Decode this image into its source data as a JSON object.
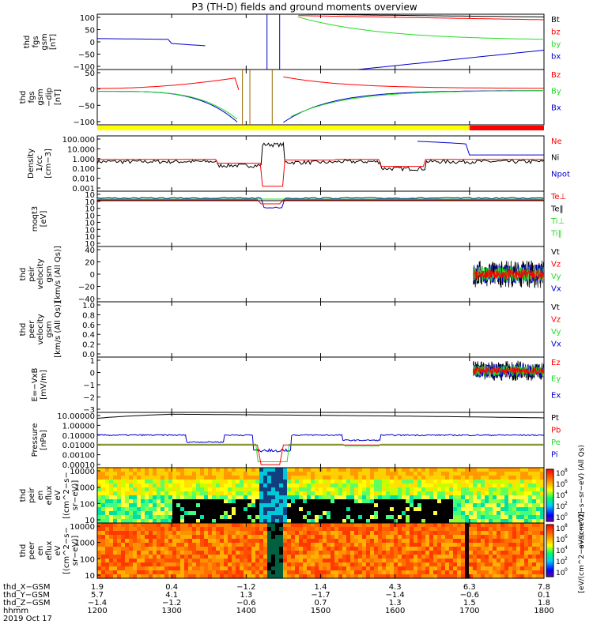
{
  "title": "P3 (TH-D) fields and ground moments overview",
  "colors": {
    "black": "#000000",
    "red": "#ff0000",
    "green": "#22dd22",
    "blue": "#0000cc",
    "yellow": "#ffff00"
  },
  "chart_data": [
    {
      "type": "line",
      "panel": "fgs_gsm_nT",
      "ylabel": [
        "thd",
        "fgs",
        "gsm",
        "[nT]"
      ],
      "ylim": [
        -100,
        100
      ],
      "ticks": [
        "100",
        "50",
        "0",
        "−50",
        "−100"
      ],
      "series": [
        {
          "name": "Bt",
          "color": "black"
        },
        {
          "name": "bz",
          "color": "red"
        },
        {
          "name": "by",
          "color": "green"
        },
        {
          "name": "bx",
          "color": "blue"
        }
      ]
    },
    {
      "type": "line",
      "panel": "fgs_gsm_dip",
      "ylabel": [
        "thd",
        "fgs",
        "gsm",
        "−dip",
        "[nT]"
      ],
      "ylim": [
        -120,
        70
      ],
      "ticks": [
        "50",
        "0",
        "−50",
        "−100"
      ],
      "series": [
        {
          "name": "Bz",
          "color": "red"
        },
        {
          "name": "By",
          "color": "green"
        },
        {
          "name": "Bx",
          "color": "blue"
        }
      ]
    },
    {
      "type": "line",
      "panel": "density",
      "ylabel": [
        "Density",
        "1/cc",
        "[cm−3]"
      ],
      "scale": "log",
      "ticks": [
        "100.000",
        "10.000",
        "1.000",
        "0.100",
        "0.010",
        "0.001"
      ],
      "series": [
        {
          "name": "Ne",
          "color": "red"
        },
        {
          "name": "Ni",
          "color": "black"
        },
        {
          "name": "Npot",
          "color": "blue"
        }
      ]
    },
    {
      "type": "line",
      "panel": "temperature",
      "ylabel": [
        "moqt3",
        "[eV]"
      ],
      "scale": "log",
      "ticks": [
        "10",
        "10",
        "10",
        "10",
        "10",
        "10",
        "10",
        "10"
      ],
      "series": [
        {
          "name": "Te⊥",
          "color": "red"
        },
        {
          "name": "Te‖",
          "color": "black"
        },
        {
          "name": "Ti⊥",
          "color": "green"
        },
        {
          "name": "Ti‖",
          "color": "green"
        }
      ]
    },
    {
      "type": "line",
      "panel": "peir_velocity",
      "ylabel": [
        "thd",
        "peir",
        "velocity",
        "gsm",
        "[km/s (All Qs)]"
      ],
      "ylim": [
        -40,
        40
      ],
      "ticks": [
        "40",
        "20",
        "0",
        "−20",
        "−40"
      ],
      "series": [
        {
          "name": "Vt",
          "color": "black"
        },
        {
          "name": "Vz",
          "color": "red"
        },
        {
          "name": "Vy",
          "color": "green"
        },
        {
          "name": "Vx",
          "color": "blue"
        }
      ]
    },
    {
      "type": "line",
      "panel": "peer_velocity",
      "ylabel": [
        "thd",
        "peer",
        "velocity",
        "gsm",
        "[km/s (All Qs)]"
      ],
      "ylim": [
        0,
        1
      ],
      "ticks": [
        "1.0",
        "0.8",
        "0.6",
        "0.4",
        "0.2",
        "0.0"
      ],
      "series": [
        {
          "name": "Vt",
          "color": "black"
        },
        {
          "name": "Vz",
          "color": "red"
        },
        {
          "name": "Vy",
          "color": "green"
        },
        {
          "name": "Vx",
          "color": "blue"
        }
      ]
    },
    {
      "type": "line",
      "panel": "e_vxb",
      "ylabel": [
        "E=−VxB",
        "[mV/m]"
      ],
      "ylim": [
        -3,
        1
      ],
      "ticks": [
        "1",
        "0",
        "−1",
        "−2",
        "−3"
      ],
      "series": [
        {
          "name": "Ez",
          "color": "red"
        },
        {
          "name": "Ey",
          "color": "green"
        },
        {
          "name": "Ex",
          "color": "blue"
        }
      ]
    },
    {
      "type": "line",
      "panel": "pressure",
      "ylabel": [
        "Pressure",
        "[nPa]"
      ],
      "scale": "log",
      "ticks": [
        "10.00000",
        "1.00000",
        "0.10000",
        "0.01000",
        "0.00100",
        "0.00010"
      ],
      "series": [
        {
          "name": "Pt",
          "color": "black"
        },
        {
          "name": "Pb",
          "color": "red"
        },
        {
          "name": "Pe",
          "color": "green"
        },
        {
          "name": "Pi",
          "color": "blue"
        }
      ]
    },
    {
      "type": "heatmap",
      "panel": "peir_eflux",
      "ylabel": [
        "thd",
        "peir",
        "en",
        "eflux",
        "eV",
        "[(cm^2−s−",
        "sr−eV)]"
      ],
      "ylim": [
        5,
        25000
      ],
      "ticks": [
        "10000",
        "1000",
        "100",
        "10"
      ],
      "zticks": [
        "10",
        "10",
        "10",
        "10",
        "10"
      ],
      "zlabel": "eV/(cm^2−s−sr−eV) (All Qs)"
    },
    {
      "type": "heatmap",
      "panel": "peer_eflux",
      "ylabel": [
        "thd",
        "peer",
        "en",
        "eflux",
        "eV",
        "[(cm^2−s−",
        "sr−eV)]"
      ],
      "ylim": [
        5,
        25000
      ],
      "ticks": [
        "10000",
        "1000",
        "100",
        "10"
      ],
      "zticks": [
        "10",
        "10",
        "10",
        "10",
        "10"
      ],
      "zlabel": "[eV/(cm^2−s−sr−eV)]"
    }
  ],
  "axis": {
    "row_labels": [
      "thd_X−GSM",
      "thd_Y−GSM",
      "thd_Z−GSM",
      "hhmm",
      "2019 Oct 17"
    ],
    "columns": [
      {
        "x": "1.9",
        "y": "5.7",
        "z": "−1.4",
        "t": "1200"
      },
      {
        "x": "0.4",
        "y": "4.1",
        "z": "−1.2",
        "t": "1300"
      },
      {
        "x": "−1.2",
        "y": "1.3",
        "z": "−0.6",
        "t": "1400"
      },
      {
        "x": "1.4",
        "y": "−1.7",
        "z": "0.7",
        "t": "1500"
      },
      {
        "x": "4.3",
        "y": "−1.4",
        "z": "1.3",
        "t": "1600"
      },
      {
        "x": "6.3",
        "y": "−0.6",
        "z": "1.5",
        "t": "1700"
      },
      {
        "x": "7.8",
        "y": "0.1",
        "z": "1.8",
        "t": "1800"
      }
    ],
    "ticks_hours": [
      12,
      13,
      14,
      15,
      16,
      17,
      18
    ]
  },
  "colorbar_exponent_labels": [
    "8",
    "6",
    "4",
    "2",
    "0"
  ]
}
